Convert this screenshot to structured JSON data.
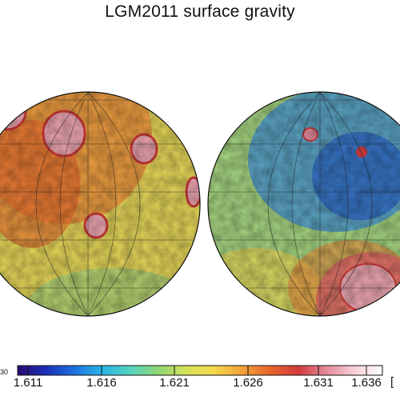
{
  "title": "LGM2011 surface gravity",
  "colorbar": {
    "tick_labels": [
      "1.611",
      "1.616",
      "1.621",
      "1.626",
      "1.631",
      "1.636"
    ],
    "cut_left_label": "30",
    "unit_label": "[",
    "stops": [
      "#2a0a6e",
      "#1a2fb8",
      "#1f6fe0",
      "#27b5e8",
      "#55d2c0",
      "#8fd676",
      "#d5e25a",
      "#f4d94a",
      "#f3a23a",
      "#e8642c",
      "#d23a3a",
      "#e58a9a",
      "#f6d0d8",
      "#ffffff"
    ]
  },
  "hemispheres": [
    {
      "name": "left-hemisphere",
      "base_color": "#e9d95a",
      "regions": [
        {
          "color": "#ef8a3a",
          "opacity": 0.75
        },
        {
          "color": "#e8642c",
          "opacity": 0.6
        },
        {
          "color": "#9fd07a",
          "opacity": 0.7
        },
        {
          "color": "#6ec9b0",
          "opacity": 0.6
        }
      ],
      "basins": [
        {
          "color": "#f0a8b4"
        },
        {
          "color": "#f0a8b4"
        },
        {
          "color": "#f0a8b4"
        },
        {
          "color": "#f0a8b4"
        },
        {
          "color": "#f0a8b4"
        },
        {
          "color": "#f0a8b4"
        }
      ]
    },
    {
      "name": "right-hemisphere",
      "base_color": "#a8d883",
      "regions": [
        {
          "color": "#3a8fe0",
          "opacity": 0.7
        },
        {
          "color": "#1f57c8",
          "opacity": 0.6
        },
        {
          "color": "#e9d95a",
          "opacity": 0.75
        },
        {
          "color": "#ef8a3a",
          "opacity": 0.6
        },
        {
          "color": "#e46a6a",
          "opacity": 0.85
        }
      ],
      "basins": [
        {
          "color": "#e58a9a"
        },
        {
          "color": "#f0a8b4"
        },
        {
          "color": "#e04040"
        }
      ]
    }
  ]
}
